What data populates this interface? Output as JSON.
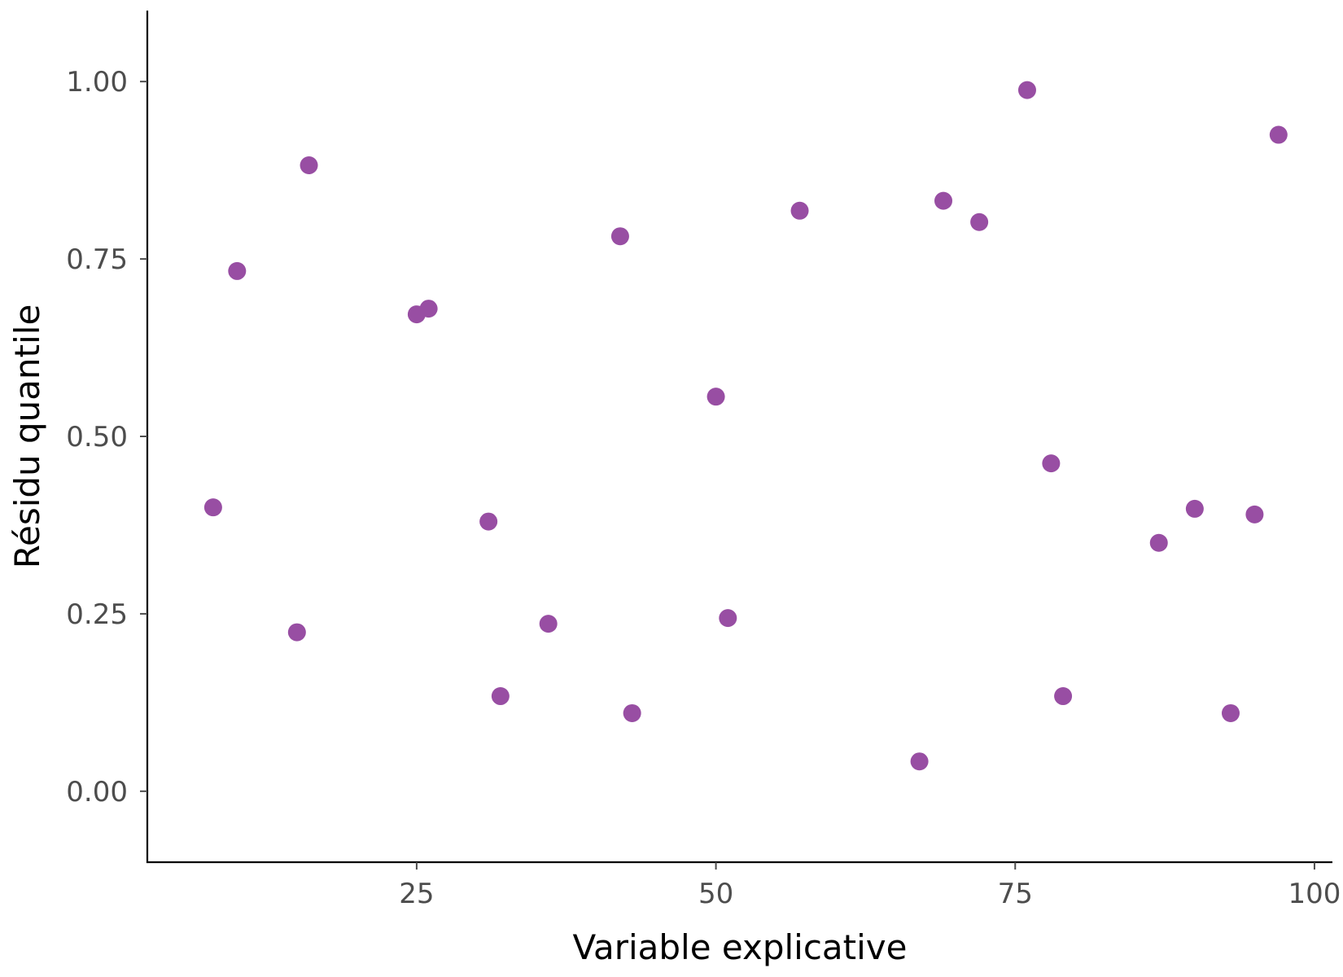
{
  "chart_data": {
    "type": "scatter",
    "title": "",
    "xlabel": "Variable explicative",
    "ylabel": "Résidu quantile",
    "xlim": [
      2.5,
      101.5
    ],
    "ylim": [
      -0.1,
      1.1
    ],
    "x_ticks": [
      25,
      50,
      75,
      100
    ],
    "x_tick_labels": [
      "25",
      "50",
      "75",
      "100"
    ],
    "y_ticks": [
      0,
      0.25,
      0.5,
      0.75,
      1.0
    ],
    "y_tick_labels": [
      "0.00",
      "0.25",
      "0.50",
      "0.75",
      "1.00"
    ],
    "grid": false,
    "point_color": "#984EA3",
    "points": [
      {
        "x": 8,
        "y": 0.4
      },
      {
        "x": 10,
        "y": 0.733
      },
      {
        "x": 15,
        "y": 0.224
      },
      {
        "x": 16,
        "y": 0.882
      },
      {
        "x": 25,
        "y": 0.672
      },
      {
        "x": 26,
        "y": 0.68
      },
      {
        "x": 31,
        "y": 0.38
      },
      {
        "x": 32,
        "y": 0.134
      },
      {
        "x": 36,
        "y": 0.236
      },
      {
        "x": 42,
        "y": 0.782
      },
      {
        "x": 43,
        "y": 0.11
      },
      {
        "x": 50,
        "y": 0.556
      },
      {
        "x": 51,
        "y": 0.244
      },
      {
        "x": 57,
        "y": 0.818
      },
      {
        "x": 67,
        "y": 0.042
      },
      {
        "x": 69,
        "y": 0.832
      },
      {
        "x": 72,
        "y": 0.802
      },
      {
        "x": 76,
        "y": 0.988
      },
      {
        "x": 78,
        "y": 0.462
      },
      {
        "x": 79,
        "y": 0.134
      },
      {
        "x": 87,
        "y": 0.35
      },
      {
        "x": 90,
        "y": 0.398
      },
      {
        "x": 93,
        "y": 0.11
      },
      {
        "x": 95,
        "y": 0.39
      },
      {
        "x": 97,
        "y": 0.925
      }
    ]
  }
}
